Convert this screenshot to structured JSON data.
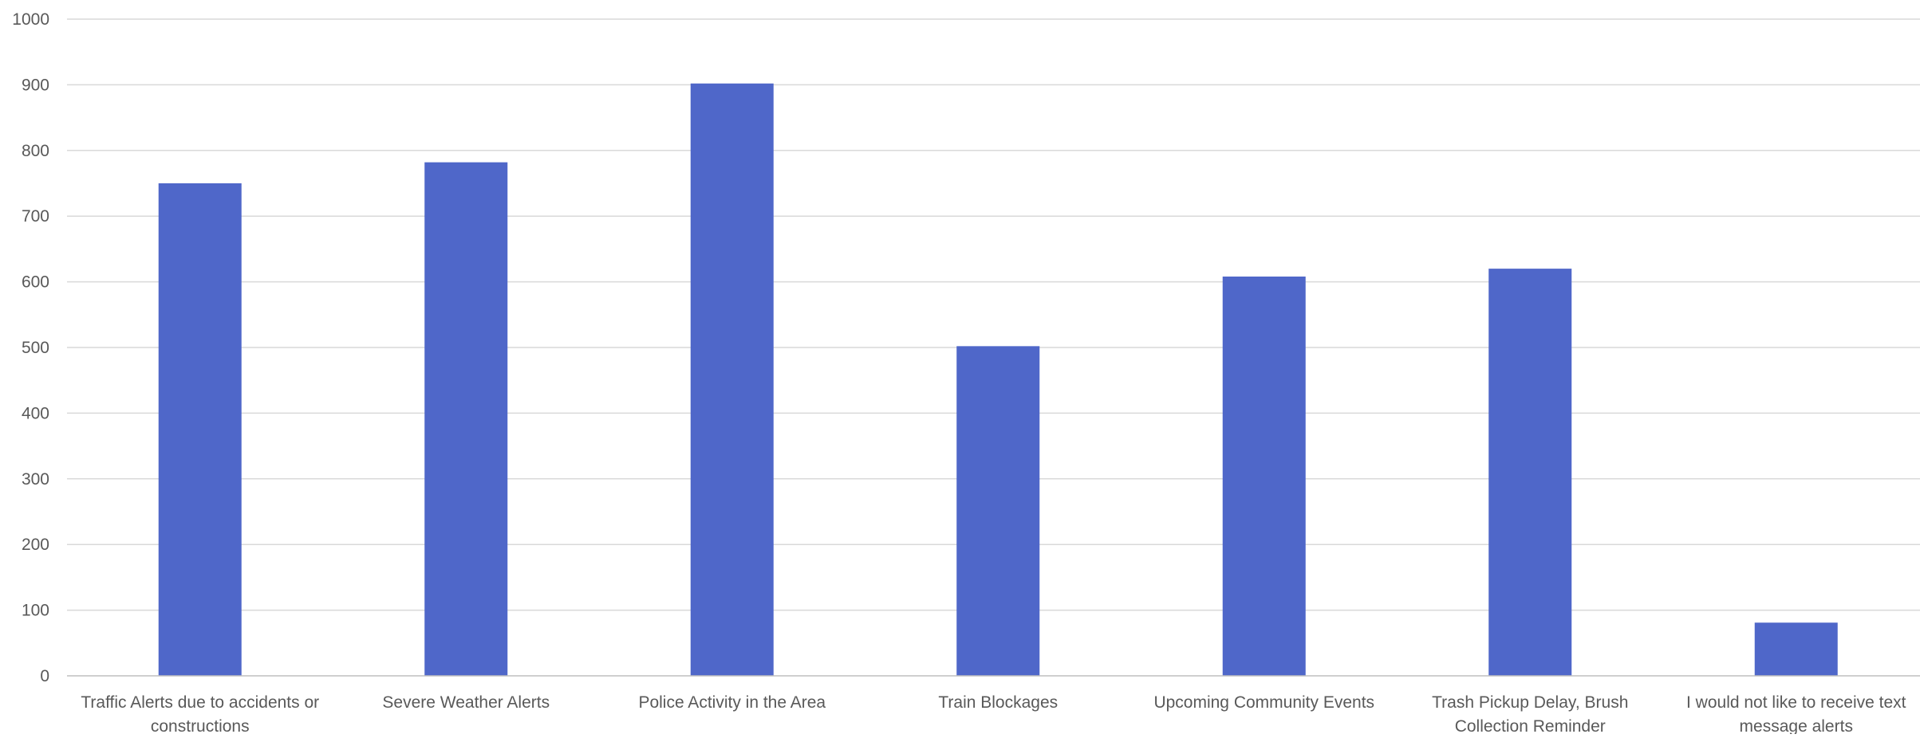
{
  "chart_data": {
    "type": "bar",
    "title": "",
    "xlabel": "",
    "ylabel": "",
    "categories": [
      "Traffic Alerts due to accidents or constructions",
      "Severe Weather Alerts",
      "Police Activity in the Area",
      "Train Blockages",
      "Upcoming Community Events",
      "Trash Pickup Delay, Brush Collection Reminder",
      "I would not like to receive text message alerts"
    ],
    "category_lines": [
      [
        "Traffic Alerts due to accidents or",
        "constructions"
      ],
      [
        "Severe Weather Alerts"
      ],
      [
        "Police Activity in the Area"
      ],
      [
        "Train Blockages"
      ],
      [
        "Upcoming Community Events"
      ],
      [
        "Trash Pickup Delay, Brush",
        "Collection Reminder"
      ],
      [
        "I would not like to receive text",
        "message alerts"
      ]
    ],
    "values": [
      750,
      782,
      902,
      502,
      608,
      620,
      81
    ],
    "ylim": [
      0,
      1000
    ],
    "yticks": [
      0,
      100,
      200,
      300,
      400,
      500,
      600,
      700,
      800,
      900,
      1000
    ],
    "grid": true,
    "legend": "none",
    "bar_color": "#4f67c9"
  }
}
